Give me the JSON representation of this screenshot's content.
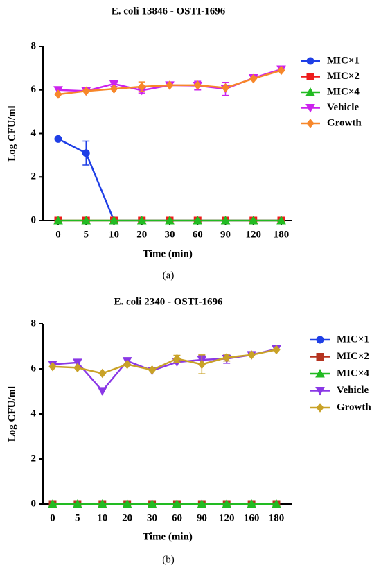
{
  "chart_data": [
    {
      "type": "line",
      "title": "E. coli 13846 - OSTI-1696",
      "caption": "(a)",
      "xlabel": "Time (min)",
      "ylabel": "Log CFU/ml",
      "categories": [
        "0",
        "5",
        "10",
        "20",
        "30",
        "60",
        "90",
        "120",
        "180"
      ],
      "ylim": [
        0,
        8
      ],
      "yticks": [
        0,
        2,
        4,
        6,
        8
      ],
      "series": [
        {
          "name": "MIC×1",
          "color": "#1f3fe6",
          "marker": "circle",
          "values": [
            3.75,
            3.1,
            0,
            0,
            0,
            0,
            0,
            0,
            0
          ],
          "errors": [
            0.08,
            0.55,
            null,
            null,
            null,
            null,
            null,
            null,
            null
          ]
        },
        {
          "name": "MIC×2",
          "color": "#ee1c1c",
          "marker": "square",
          "values": [
            0,
            0,
            0,
            0,
            0,
            0,
            0,
            0,
            0
          ]
        },
        {
          "name": "MIC×4",
          "color": "#22bb22",
          "marker": "triangle",
          "values": [
            0,
            0,
            0,
            0,
            0,
            0,
            0,
            0,
            0
          ]
        },
        {
          "name": "Vehicle",
          "color": "#cc22ee",
          "marker": "triangle-down",
          "values": [
            6.0,
            5.95,
            6.28,
            5.98,
            6.22,
            6.2,
            6.05,
            6.55,
            6.95
          ],
          "errors": [
            null,
            null,
            0.12,
            0.12,
            null,
            0.2,
            0.3,
            null,
            null
          ]
        },
        {
          "name": "Growth",
          "color": "#f7872a",
          "marker": "diamond",
          "values": [
            5.8,
            5.95,
            6.05,
            6.15,
            6.22,
            6.22,
            6.1,
            6.52,
            6.9
          ],
          "errors": [
            null,
            null,
            null,
            0.22,
            null,
            null,
            null,
            null,
            null
          ]
        }
      ]
    },
    {
      "type": "line",
      "title": "E. coli 2340 - OSTI-1696",
      "caption": "(b)",
      "xlabel": "Time (min)",
      "ylabel": "Log CFU/ml",
      "categories": [
        "0",
        "5",
        "10",
        "20",
        "30",
        "60",
        "90",
        "120",
        "160",
        "180"
      ],
      "ylim": [
        0,
        8
      ],
      "yticks": [
        0,
        2,
        4,
        6,
        8
      ],
      "series": [
        {
          "name": "MIC×1",
          "color": "#1f3fe6",
          "marker": "circle",
          "values": [
            0,
            0,
            0,
            0,
            0,
            0,
            0,
            0,
            0,
            0
          ]
        },
        {
          "name": "MIC×2",
          "color": "#b5331f",
          "marker": "square",
          "values": [
            0,
            0,
            0,
            0,
            0,
            0,
            0,
            0,
            0,
            0
          ]
        },
        {
          "name": "MIC×4",
          "color": "#22bb22",
          "marker": "triangle",
          "values": [
            0,
            0,
            0,
            0,
            0,
            0,
            0,
            0,
            0,
            0
          ]
        },
        {
          "name": "Vehicle",
          "color": "#8a38e6",
          "marker": "triangle-down",
          "values": [
            6.2,
            6.28,
            5.02,
            6.35,
            5.92,
            6.3,
            6.4,
            6.45,
            6.62,
            6.88
          ],
          "errors": [
            null,
            null,
            null,
            null,
            null,
            null,
            0.2,
            0.2,
            null,
            null
          ]
        },
        {
          "name": "Growth",
          "color": "#c9a227",
          "marker": "diamond",
          "values": [
            6.1,
            6.05,
            5.8,
            6.2,
            5.95,
            6.45,
            6.2,
            6.5,
            6.62,
            6.85
          ],
          "errors": [
            null,
            null,
            null,
            null,
            null,
            0.15,
            0.42,
            0.15,
            null,
            null
          ]
        }
      ]
    }
  ]
}
